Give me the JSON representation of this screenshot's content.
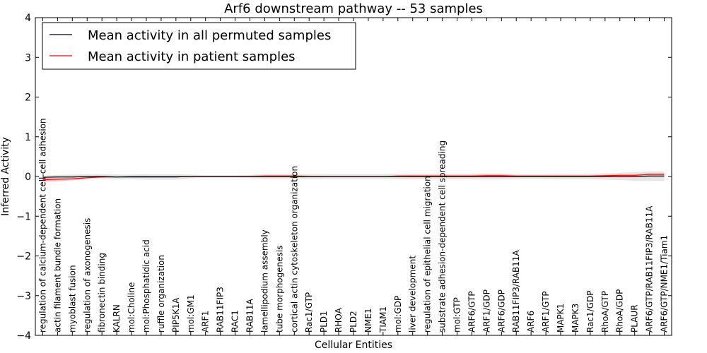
{
  "chart_data": {
    "type": "line",
    "title": "Arf6 downstream pathway -- 53 samples",
    "xlabel": "Cellular Entities",
    "ylabel": "Inferred Activity",
    "ylim": [
      -4,
      4
    ],
    "yticks": [
      -4,
      -3,
      -2,
      -1,
      0,
      1,
      2,
      3,
      4
    ],
    "ytick_labels": [
      "−4",
      "−3",
      "−2",
      "−1",
      "0",
      "1",
      "2",
      "3",
      "4"
    ],
    "grid": false,
    "legend_position": "top-left",
    "categories": [
      "regulation of calcium-dependent cell-cell adhesion",
      "actin filament bundle formation",
      "myoblast fusion",
      "regulation of axonogenesis",
      "fibronectin binding",
      "KALRN",
      "mol:Choline",
      "mol:Phosphatidic acid",
      "ruffle organization",
      "PIP5K1A",
      "mol:GM1",
      "ARF1",
      "RAB11FIP3",
      "RAC1",
      "RAB11A",
      "lamellipodium assembly",
      "tube morphogenesis",
      "cortical actin cytoskeleton organization",
      "Rac1/GTP",
      "PLD1",
      "RHOA",
      "PLD2",
      "NME1",
      "TIAM1",
      "mol:GDP",
      "liver development",
      "regulation of epithelial cell migration",
      "substrate adhesion-dependent cell spreading",
      "mol:GTP",
      "ARF6/GTP",
      "ARF1/GDP",
      "ARF6/GDP",
      "RAB11FIP3/RAB11A",
      "ARF6",
      "ARF1/GTP",
      "MAPK1",
      "MAPK3",
      "Rac1/GDP",
      "RhoA/GTP",
      "RhoA/GDP",
      "PLAUR",
      "ARF6/GTP/RAB11FIP3/RAB11A",
      "ARF6/GTP/NME1/Tiam1"
    ],
    "series": [
      {
        "name": "Mean activity in all permuted samples",
        "color": "#000000",
        "values": [
          -0.02,
          -0.01,
          -0.01,
          0.0,
          0.0,
          -0.01,
          -0.01,
          -0.01,
          -0.01,
          -0.01,
          0.0,
          0.0,
          0.0,
          0.0,
          0.0,
          0.0,
          0.0,
          0.0,
          0.0,
          0.0,
          0.0,
          0.0,
          0.0,
          0.0,
          0.0,
          0.0,
          0.0,
          0.0,
          0.0,
          0.0,
          0.0,
          0.0,
          0.0,
          0.0,
          0.0,
          0.0,
          0.0,
          0.0,
          0.0,
          0.0,
          0.0,
          0.01,
          0.01
        ],
        "band": [
          0.04,
          0.05,
          0.06,
          0.06,
          0.06,
          0.06,
          0.06,
          0.07,
          0.07,
          0.07,
          0.05,
          0.03,
          0.03,
          0.03,
          0.04,
          0.06,
          0.06,
          0.06,
          0.06,
          0.06,
          0.06,
          0.06,
          0.06,
          0.06,
          0.07,
          0.07,
          0.07,
          0.07,
          0.07,
          0.07,
          0.07,
          0.07,
          0.06,
          0.06,
          0.06,
          0.07,
          0.07,
          0.07,
          0.08,
          0.09,
          0.11,
          0.12,
          0.12
        ],
        "band_color": "#dddddd"
      },
      {
        "name": "Mean activity in patient samples",
        "color": "#ff0000",
        "values": [
          -0.08,
          -0.07,
          -0.06,
          -0.03,
          -0.01,
          -0.01,
          0.0,
          0.0,
          0.0,
          0.0,
          0.0,
          0.0,
          0.0,
          0.0,
          0.0,
          0.01,
          0.01,
          0.01,
          0.0,
          0.0,
          0.0,
          0.0,
          0.0,
          0.0,
          0.01,
          0.01,
          0.01,
          0.01,
          0.01,
          0.01,
          0.02,
          0.02,
          0.01,
          0.01,
          0.01,
          0.01,
          0.01,
          0.01,
          0.02,
          0.03,
          0.03,
          0.05,
          0.05
        ],
        "band": [
          0.05,
          0.05,
          0.04,
          0.03,
          0.02,
          0.01,
          0.01,
          0.01,
          0.01,
          0.01,
          0.01,
          0.01,
          0.01,
          0.01,
          0.02,
          0.03,
          0.03,
          0.03,
          0.02,
          0.01,
          0.01,
          0.01,
          0.01,
          0.01,
          0.02,
          0.03,
          0.03,
          0.03,
          0.03,
          0.03,
          0.04,
          0.04,
          0.02,
          0.02,
          0.02,
          0.02,
          0.02,
          0.02,
          0.02,
          0.03,
          0.03,
          0.04,
          0.04
        ],
        "band_color": "#f4a0a0"
      }
    ]
  }
}
